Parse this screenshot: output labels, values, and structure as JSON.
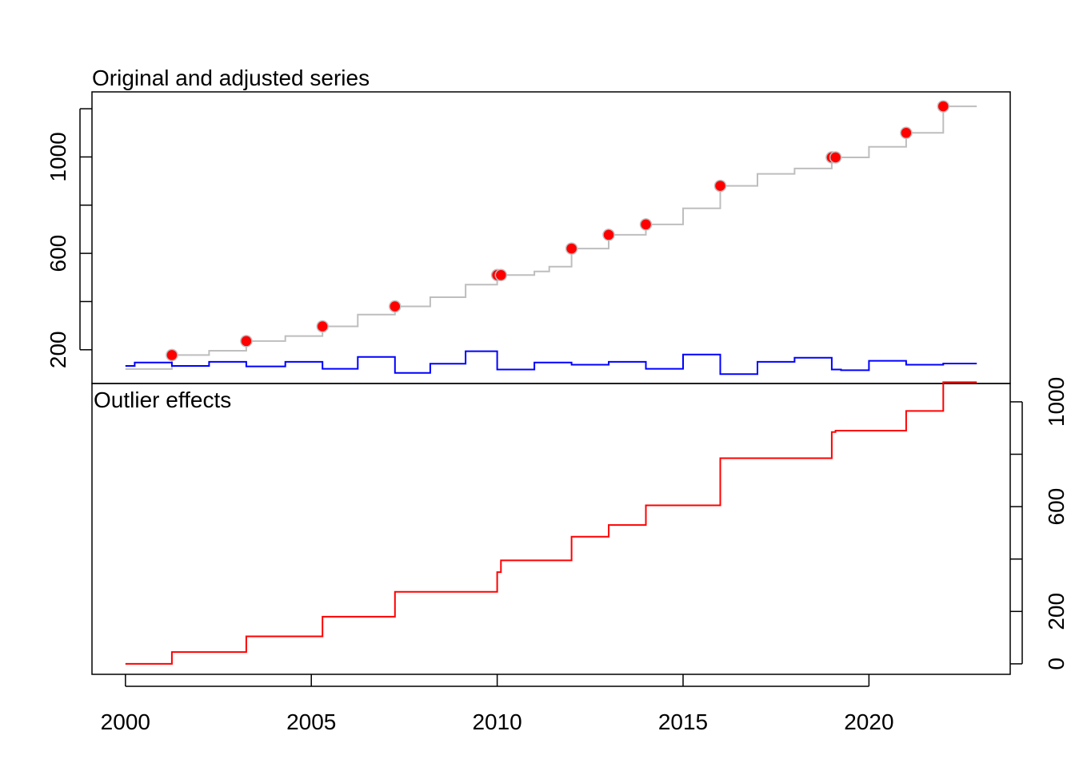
{
  "chart_data": [
    {
      "type": "line",
      "title": "Original and adjusted series",
      "xlabel": "",
      "ylabel": "",
      "xlim": [
        1999.1,
        2023.8
      ],
      "ylim": [
        60,
        1270
      ],
      "y_ticks": [
        200,
        400,
        600,
        800,
        1000,
        1200
      ],
      "y_tick_labels": [
        "200",
        "",
        "600",
        "",
        "1000",
        ""
      ],
      "y_axis_side": "left",
      "grid": false,
      "series": [
        {
          "role": "original",
          "color": "#bebebe",
          "step": true,
          "x": [
            2000,
            2001.25,
            2002.25,
            2003.25,
            2004.3,
            2005.3,
            2006.25,
            2007.25,
            2008.2,
            2009.15,
            2010.0,
            2010.1,
            2011.0,
            2011.4,
            2012.0,
            2013.0,
            2014.0,
            2015.0,
            2016.0,
            2017.0,
            2018.0,
            2019.0,
            2019.1,
            2020.0,
            2021.0,
            2022.0,
            2022.9
          ],
          "y": [
            120,
            178,
            196,
            236,
            257,
            297,
            346,
            380,
            418,
            470,
            510,
            510,
            525,
            545,
            620,
            677,
            720,
            787,
            880,
            930,
            952,
            998,
            998,
            1042,
            1100,
            1210,
            1210
          ]
        },
        {
          "role": "adjusted",
          "color": "#0000ff",
          "step": true,
          "x": [
            2000,
            2000.25,
            2001.25,
            2002.25,
            2003.25,
            2004.3,
            2005.3,
            2006.25,
            2007.25,
            2008.2,
            2009.15,
            2010.0,
            2010.1,
            2011.0,
            2011.25,
            2012.0,
            2013.0,
            2014.0,
            2015.0,
            2016.0,
            2017.0,
            2018.0,
            2019.0,
            2019.25,
            2020.0,
            2021.0,
            2022.0,
            2022.9
          ],
          "y": [
            133,
            147,
            133,
            150,
            131,
            150,
            121,
            170,
            104,
            142,
            194,
            118,
            118,
            147,
            147,
            138,
            150,
            121,
            180,
            99,
            150,
            167,
            118,
            115,
            154,
            138,
            143,
            143
          ]
        }
      ],
      "outlier_points": {
        "color": "#ff0000",
        "x": [
          2001.25,
          2003.25,
          2005.3,
          2007.25,
          2010.0,
          2010.1,
          2012.0,
          2013.0,
          2014.0,
          2016.0,
          2019.0,
          2019.1,
          2021.0,
          2022.0
        ],
        "y": [
          178,
          236,
          297,
          380,
          510,
          510,
          620,
          677,
          720,
          880,
          998,
          998,
          1100,
          1210
        ]
      }
    },
    {
      "type": "line",
      "title": "Outlier effects",
      "xlabel": "",
      "ylabel": "",
      "xlim": [
        1999.1,
        2023.8
      ],
      "ylim": [
        -40,
        1070
      ],
      "y_ticks": [
        0,
        200,
        400,
        600,
        800,
        1000
      ],
      "y_tick_labels": [
        "0",
        "200",
        "",
        "600",
        "",
        "1000"
      ],
      "y_axis_side": "right",
      "x_ticks": [
        2000,
        2005,
        2010,
        2015,
        2020
      ],
      "x_tick_labels": [
        "2000",
        "2005",
        "2010",
        "2015",
        "2020"
      ],
      "grid": false,
      "series": [
        {
          "role": "outlier effects",
          "color": "#ff0000",
          "step": true,
          "x": [
            2000,
            2001.25,
            2003.25,
            2005.3,
            2007.25,
            2010.0,
            2010.1,
            2012.0,
            2013.0,
            2014.0,
            2016.0,
            2019.0,
            2019.1,
            2021.0,
            2022.0,
            2022.9
          ],
          "y": [
            0,
            45,
            105,
            180,
            275,
            350,
            395,
            485,
            530,
            605,
            785,
            885,
            890,
            965,
            1075,
            1075
          ]
        }
      ]
    }
  ]
}
